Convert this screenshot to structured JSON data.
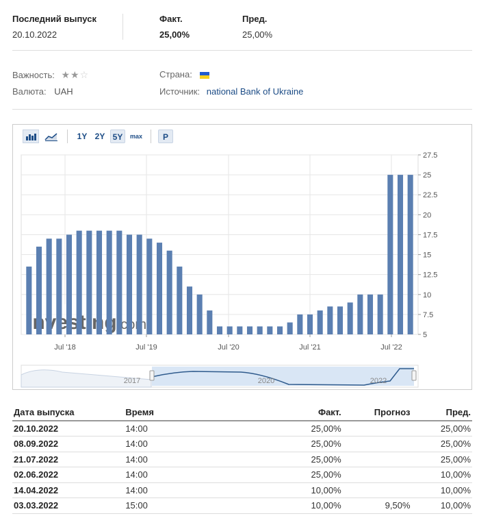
{
  "header": {
    "last_release_label": "Последний выпуск",
    "last_release_value": "20.10.2022",
    "actual_label": "Факт.",
    "actual_value": "25,00%",
    "previous_label": "Пред.",
    "previous_value": "25,00%"
  },
  "meta": {
    "importance_label": "Важность:",
    "importance_stars": 2,
    "importance_max": 3,
    "currency_label": "Валюта:",
    "currency_value": "UAH",
    "country_label": "Страна:",
    "source_label": "Источник:",
    "source_value": "national Bank of Ukraine"
  },
  "toolbar": {
    "range_1y": "1Y",
    "range_2y": "2Y",
    "range_5y": "5Y",
    "range_max": "max",
    "p_label": "P"
  },
  "colors": {
    "bar": "#5b7fb1",
    "accent": "#1c4c86",
    "green": "#2aa52a"
  },
  "chart_data": {
    "type": "bar",
    "y_ticks": [
      "27.5",
      "25",
      "22.5",
      "20",
      "17.5",
      "15",
      "12.5",
      "10",
      "7.5",
      "5"
    ],
    "ylim": [
      5,
      27.5
    ],
    "x_labels": [
      "Jul '18",
      "Jul '19",
      "Jul '20",
      "Jul '21",
      "Jul '22"
    ],
    "values": [
      13.5,
      16,
      17,
      17,
      17.5,
      18,
      18,
      18,
      18,
      18,
      17.5,
      17.5,
      17,
      16.5,
      15.5,
      13.5,
      11,
      10,
      8,
      6,
      6,
      6,
      6,
      6,
      6,
      6,
      6.5,
      7.5,
      7.5,
      8,
      8.5,
      8.5,
      9,
      10,
      10,
      10,
      25,
      25,
      25
    ],
    "navigator_labels": [
      "2017",
      "2020",
      "2022"
    ],
    "watermark": "Investing.com"
  },
  "table": {
    "headers": [
      "Дата выпуска",
      "Время",
      "Факт.",
      "Прогноз",
      "Пред."
    ],
    "rows": [
      {
        "date": "20.10.2022",
        "time": "14:00",
        "actual": "25,00%",
        "forecast": "",
        "previous": "25,00%"
      },
      {
        "date": "08.09.2022",
        "time": "14:00",
        "actual": "25,00%",
        "forecast": "",
        "previous": "25,00%"
      },
      {
        "date": "21.07.2022",
        "time": "14:00",
        "actual": "25,00%",
        "forecast": "",
        "previous": "25,00%"
      },
      {
        "date": "02.06.2022",
        "time": "14:00",
        "actual": "25,00%",
        "forecast": "",
        "previous": "10,00%"
      },
      {
        "date": "14.04.2022",
        "time": "14:00",
        "actual": "10,00%",
        "forecast": "",
        "previous": "10,00%"
      },
      {
        "date": "03.03.2022",
        "time": "15:00",
        "actual": "10,00%",
        "forecast": "9,50%",
        "previous": "10,00%"
      }
    ]
  }
}
